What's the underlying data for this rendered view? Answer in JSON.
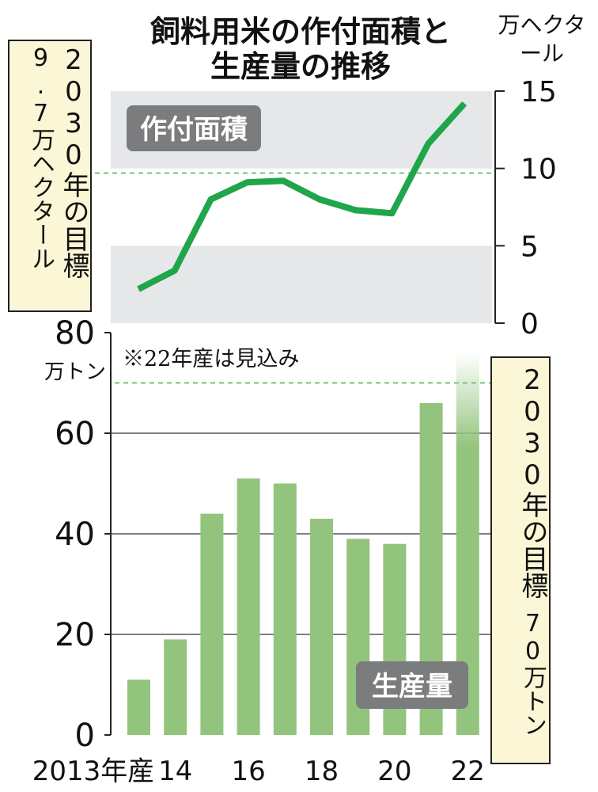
{
  "title_line1": "飼料用米の作付面積と",
  "title_line2": "生産量の推移",
  "chart_data": [
    {
      "type": "line",
      "name": "作付面積",
      "label": "作付面積",
      "ylabel": "万ヘクタール",
      "ylim": [
        0,
        15
      ],
      "yticks": [
        "0",
        "5",
        "10",
        "15"
      ],
      "x": [
        2013,
        2014,
        2015,
        2016,
        2017,
        2018,
        2019,
        2020,
        2021,
        2022
      ],
      "values": [
        2.2,
        3.4,
        8.0,
        9.1,
        9.2,
        8.0,
        7.3,
        7.1,
        11.6,
        14.2
      ],
      "target": 9.7,
      "target_label_main": "2030年の目標",
      "target_label_value": "9.7万ヘクタール",
      "color": "#1fa64a"
    },
    {
      "type": "bar",
      "name": "生産量",
      "label": "生産量",
      "ylabel": "万トン",
      "ylim": [
        0,
        80
      ],
      "yticks": [
        "0",
        "20",
        "40",
        "60",
        "80"
      ],
      "categories": [
        "2013年産",
        "14",
        "15",
        "16",
        "17",
        "18",
        "19",
        "20",
        "21",
        "22"
      ],
      "xtick_labels": [
        "2013年産",
        "14",
        "16",
        "18",
        "20",
        "22"
      ],
      "values": [
        11,
        19,
        44,
        51,
        50,
        43,
        39,
        38,
        66,
        76
      ],
      "target": 70,
      "target_label_main": "2030年の目標",
      "target_label_value": "70万トン",
      "note": "※22年産は見込み",
      "color": "#93c47d"
    }
  ]
}
